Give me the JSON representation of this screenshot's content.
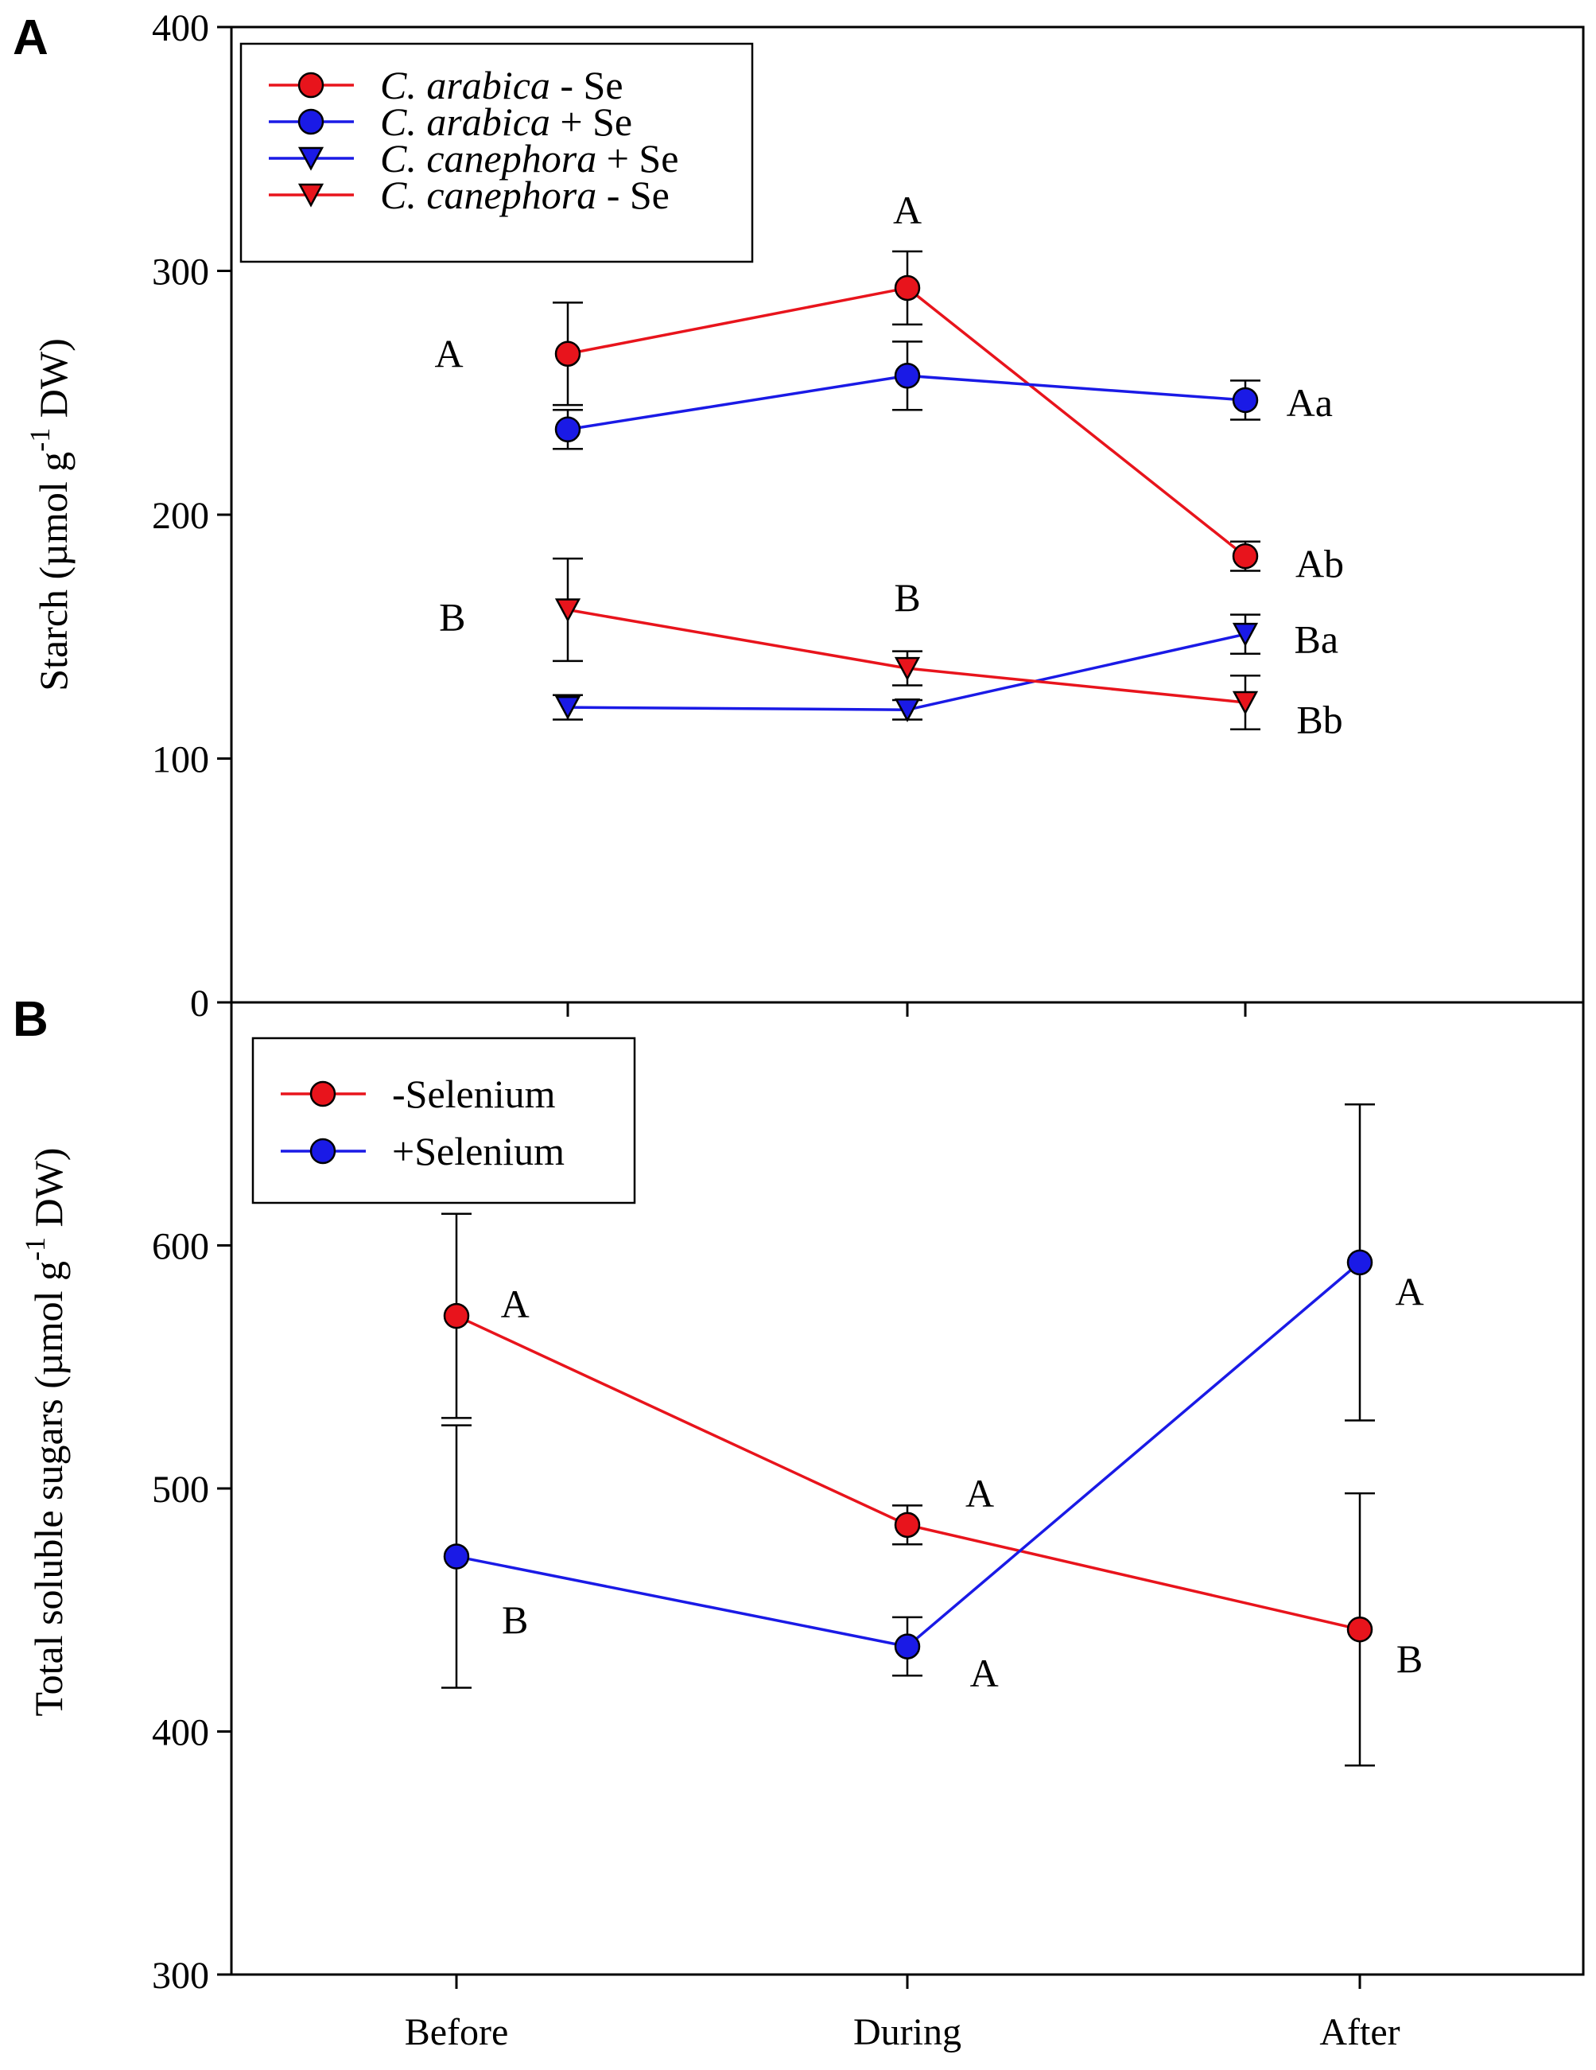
{
  "colors": {
    "red": "#e8141c",
    "blue": "#1a1ae6",
    "axis": "#000000"
  },
  "chart_data": [
    {
      "type": "line",
      "panel_label": "A",
      "ylabel": "Starch (µmol g",
      "ylabel_sup": "-1",
      "ylabel_tail": " DW)",
      "ylim": [
        0,
        400
      ],
      "yticks": [
        "0",
        "100",
        "200",
        "300",
        "400"
      ],
      "ytick_values": [
        0,
        100,
        200,
        300,
        400
      ],
      "categories": [
        "Before",
        "During",
        "After"
      ],
      "series": [
        {
          "name": "C. arabica - Se",
          "italic": "C. arabica",
          "suffix": " - Se",
          "color": "red",
          "marker": "circle",
          "values": [
            266,
            293,
            183
          ],
          "errors": [
            21,
            15,
            6
          ]
        },
        {
          "name": "C. arabica + Se",
          "italic": "C. arabica",
          "suffix": " + Se",
          "color": "blue",
          "marker": "circle",
          "values": [
            235,
            257,
            247
          ],
          "errors": [
            8,
            14,
            8
          ]
        },
        {
          "name": "C. canephora + Se",
          "italic": "C. canephora",
          "suffix": " + Se",
          "color": "blue",
          "marker": "triangle",
          "values": [
            121,
            120,
            151
          ],
          "errors": [
            5,
            4,
            8
          ]
        },
        {
          "name": "C. canephora - Se",
          "italic": "C. canephora",
          "suffix": " - Se",
          "color": "red",
          "marker": "triangle",
          "values": [
            161,
            137,
            123
          ],
          "errors": [
            21,
            7,
            11
          ]
        }
      ],
      "annotations": [
        {
          "text": "A",
          "cat": -0.35,
          "y": 266
        },
        {
          "text": "B",
          "cat": -0.34,
          "y": 158
        },
        {
          "text": "A",
          "cat": 1.0,
          "y": 325
        },
        {
          "text": "B",
          "cat": 1.0,
          "y": 166
        },
        {
          "text": "Aa",
          "cat": 2.19,
          "y": 246
        },
        {
          "text": "Ab",
          "cat": 2.22,
          "y": 180
        },
        {
          "text": "Ba",
          "cat": 2.21,
          "y": 149
        },
        {
          "text": "Bb",
          "cat": 2.22,
          "y": 116
        }
      ]
    },
    {
      "type": "line",
      "panel_label": "B",
      "ylabel": "Total soluble sugars (µmol g",
      "ylabel_sup": "-1",
      "ylabel_tail": " DW)",
      "ylim": [
        300,
        700
      ],
      "yticks": [
        "300",
        "400",
        "500",
        "600"
      ],
      "ytick_values": [
        300,
        400,
        500,
        600
      ],
      "xlabel": "",
      "categories": [
        "Before",
        "During",
        "After"
      ],
      "series": [
        {
          "name": "-Selenium",
          "italic": "",
          "suffix": "-Selenium",
          "color": "red",
          "marker": "circle",
          "values": [
            571,
            485,
            442
          ],
          "errors": [
            42,
            8,
            56
          ]
        },
        {
          "name": "+Selenium",
          "italic": "",
          "suffix": "+Selenium",
          "color": "blue",
          "marker": "circle",
          "values": [
            472,
            435,
            593
          ],
          "errors": [
            54,
            12,
            65
          ]
        }
      ],
      "annotations": [
        {
          "text": "A",
          "cat": 0.13,
          "y": 576
        },
        {
          "text": "B",
          "cat": 0.13,
          "y": 446
        },
        {
          "text": "A",
          "cat": 1.16,
          "y": 498
        },
        {
          "text": "A",
          "cat": 1.17,
          "y": 424
        },
        {
          "text": "A",
          "cat": 2.11,
          "y": 581
        },
        {
          "text": "B",
          "cat": 2.11,
          "y": 430
        }
      ]
    }
  ]
}
